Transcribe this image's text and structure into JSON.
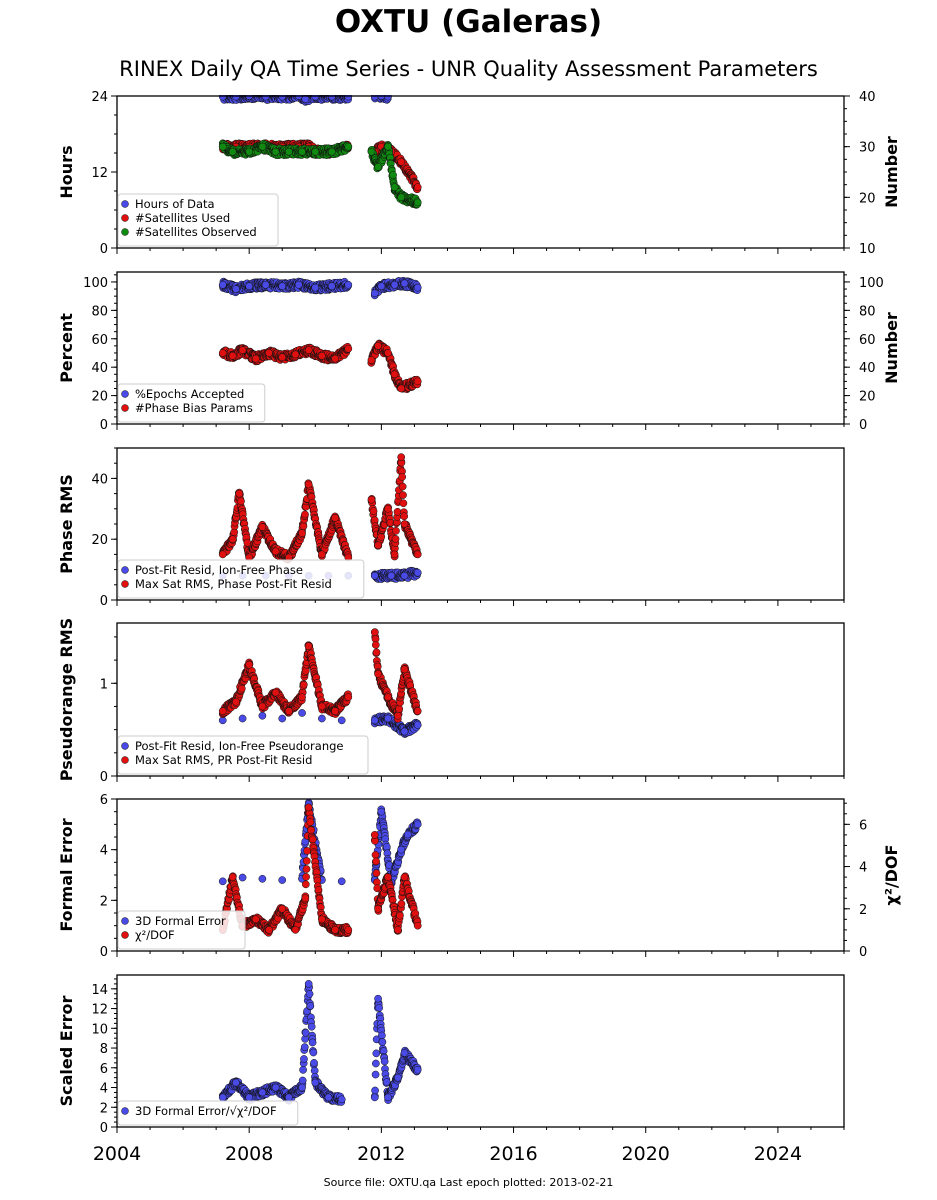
{
  "title": "OXTU (Galeras)",
  "subtitle": "RINEX Daily QA Time Series - UNR Quality Assessment Parameters",
  "footer": "Source file: OXTU.qa Last epoch plotted: 2013-02-21",
  "colors": {
    "blue": "#4a4ae6",
    "red": "#e01010",
    "green": "#108a10"
  },
  "chart_data": [
    {
      "type": "scatter",
      "xlim": [
        2004.0,
        2026.0
      ],
      "x_ticks": [
        "2004",
        "2008",
        "2012",
        "2016",
        "2020",
        "2024"
      ],
      "left_axis": {
        "label": "Hours",
        "ylim": [
          0,
          24
        ],
        "ticks": [
          "0",
          "12",
          "24"
        ]
      },
      "right_axis": {
        "label": "Number",
        "ylim": [
          10,
          40
        ],
        "ticks": [
          "10",
          "20",
          "30",
          "40"
        ]
      },
      "series": [
        {
          "name": "Hours of Data",
          "color": "blue",
          "axis": "left",
          "x": [
            2007.2,
            2007.6,
            2008.0,
            2008.5,
            2009.0,
            2009.5,
            2009.7,
            2010.0,
            2010.5,
            2011.0,
            2011.8,
            2012.0,
            2012.2
          ],
          "y": [
            23.9,
            23.9,
            24.0,
            23.9,
            23.9,
            24.0,
            23.5,
            23.9,
            23.9,
            23.9,
            23.9,
            24.0,
            23.9
          ]
        },
        {
          "name": "#Satellites Used",
          "color": "red",
          "axis": "right",
          "x": [
            2007.2,
            2007.6,
            2008.0,
            2008.5,
            2009.0,
            2009.5,
            2009.8,
            2010.0,
            2010.5,
            2011.0,
            2011.8,
            2012.0,
            2012.3,
            2012.6,
            2013.1
          ],
          "y": [
            30,
            30,
            30,
            30,
            30,
            30,
            30,
            29,
            29,
            30,
            29,
            30,
            29,
            27,
            22
          ]
        },
        {
          "name": "#Satellites Observed",
          "color": "green",
          "axis": "right",
          "x": [
            2007.2,
            2007.5,
            2008.0,
            2008.4,
            2008.8,
            2009.2,
            2009.6,
            2010.0,
            2010.5,
            2011.0,
            2011.7,
            2011.9,
            2012.2,
            2012.4,
            2012.6,
            2013.1
          ],
          "y": [
            30,
            29,
            29,
            30,
            29,
            29,
            29,
            29,
            29,
            30,
            29,
            26,
            30,
            22,
            20,
            19
          ]
        }
      ]
    },
    {
      "type": "scatter",
      "xlim": [
        2004.0,
        2026.0
      ],
      "left_axis": {
        "label": "Percent",
        "ylim": [
          0,
          107
        ],
        "ticks": [
          "0",
          "20",
          "40",
          "60",
          "80",
          "100"
        ]
      },
      "right_axis": {
        "label": "Number",
        "ylim": [
          0,
          107
        ],
        "ticks": [
          "0",
          "20",
          "40",
          "60",
          "80",
          "100"
        ]
      },
      "series": [
        {
          "name": "%Epochs Accepted",
          "color": "blue",
          "axis": "left",
          "x": [
            2007.2,
            2007.6,
            2008.0,
            2008.5,
            2009.0,
            2009.5,
            2010.0,
            2010.5,
            2011.0,
            2011.8,
            2012.0,
            2012.4,
            2012.7,
            2013.1
          ],
          "y": [
            98,
            95,
            97,
            98,
            97,
            98,
            96,
            97,
            98,
            92,
            97,
            98,
            99,
            96
          ]
        },
        {
          "name": "#Phase Bias Params",
          "color": "red",
          "axis": "right",
          "x": [
            2007.2,
            2007.5,
            2007.8,
            2008.2,
            2008.6,
            2009.0,
            2009.4,
            2009.8,
            2010.2,
            2010.6,
            2011.0,
            2011.7,
            2011.9,
            2012.2,
            2012.4,
            2012.6,
            2013.1
          ],
          "y": [
            50,
            48,
            52,
            46,
            50,
            47,
            49,
            52,
            48,
            46,
            53,
            45,
            55,
            50,
            35,
            25,
            30
          ]
        }
      ]
    },
    {
      "type": "scatter",
      "xlim": [
        2004.0,
        2026.0
      ],
      "left_axis": {
        "label": "Phase RMS",
        "ylim": [
          0,
          50
        ],
        "ticks": [
          "0",
          "20",
          "40"
        ]
      },
      "series": [
        {
          "name": "Post-Fit Resid, Ion-Free Phase",
          "color": "blue",
          "axis": "left",
          "x": [
            2007.2,
            2007.8,
            2008.5,
            2009.2,
            2009.8,
            2010.4,
            2011.0,
            2011.8,
            2012.3,
            2012.7,
            2013.1
          ],
          "y": [
            8,
            8,
            8,
            8,
            8,
            8,
            8,
            8,
            8,
            8,
            9
          ]
        },
        {
          "name": "Max Sat RMS, Phase Post-Fit Resid",
          "color": "red",
          "axis": "left",
          "x": [
            2007.2,
            2007.5,
            2007.7,
            2008.0,
            2008.4,
            2008.8,
            2009.2,
            2009.6,
            2009.8,
            2010.2,
            2010.6,
            2011.0,
            2011.7,
            2011.9,
            2012.2,
            2012.4,
            2012.6,
            2012.7,
            2013.1
          ],
          "y": [
            15,
            20,
            35,
            14,
            24,
            16,
            14,
            22,
            38,
            15,
            27,
            14,
            33,
            18,
            30,
            15,
            47,
            25,
            15
          ]
        }
      ]
    },
    {
      "type": "scatter",
      "xlim": [
        2004.0,
        2026.0
      ],
      "left_axis": {
        "label": "Pseudorange RMS",
        "ylim": [
          0,
          1.65
        ],
        "ticks": [
          "0",
          "1"
        ]
      },
      "series": [
        {
          "name": "Post-Fit Resid, Ion-Free Pseudorange",
          "color": "blue",
          "axis": "left",
          "x": [
            2007.2,
            2007.8,
            2008.4,
            2009.0,
            2009.6,
            2010.2,
            2010.8,
            2011.8,
            2012.2,
            2012.7,
            2013.1
          ],
          "y": [
            0.6,
            0.62,
            0.65,
            0.62,
            0.68,
            0.62,
            0.6,
            0.6,
            0.62,
            0.48,
            0.55
          ]
        },
        {
          "name": "Max Sat RMS, PR Post-Fit Resid",
          "color": "red",
          "axis": "left",
          "x": [
            2007.2,
            2007.6,
            2008.0,
            2008.4,
            2008.8,
            2009.2,
            2009.6,
            2009.8,
            2010.2,
            2010.6,
            2011.0,
            2011.8,
            2011.9,
            2012.2,
            2012.5,
            2012.7,
            2013.1
          ],
          "y": [
            0.7,
            0.8,
            1.2,
            0.75,
            0.9,
            0.7,
            0.85,
            1.4,
            0.75,
            0.7,
            0.85,
            1.55,
            1.1,
            0.85,
            0.65,
            1.15,
            0.7
          ]
        }
      ]
    },
    {
      "type": "scatter",
      "xlim": [
        2004.0,
        2026.0
      ],
      "left_axis": {
        "label": "Formal Error",
        "ylim": [
          0,
          6
        ],
        "ticks": [
          "0",
          "2",
          "4",
          "6"
        ]
      },
      "right_axis": {
        "label": "χ²/DOF",
        "ylim": [
          0,
          7.2
        ],
        "ticks": [
          "0",
          "2",
          "4",
          "6"
        ]
      },
      "series": [
        {
          "name": "3D Formal Error",
          "color": "blue",
          "axis": "left",
          "x": [
            2007.2,
            2007.8,
            2008.4,
            2009.0,
            2009.6,
            2009.8,
            2010.2,
            2010.8,
            2011.8,
            2012.0,
            2012.3,
            2012.6,
            2012.8,
            2013.1
          ],
          "y": [
            2.75,
            2.9,
            2.85,
            2.8,
            2.85,
            5.8,
            2.8,
            2.75,
            2.8,
            5.5,
            2.7,
            4.0,
            4.6,
            5.0
          ]
        },
        {
          "name": "χ²/DOF",
          "color": "red",
          "axis": "right",
          "x": [
            2007.2,
            2007.5,
            2007.8,
            2008.2,
            2008.6,
            2009.0,
            2009.4,
            2009.7,
            2009.8,
            2010.2,
            2010.6,
            2011.0,
            2011.8,
            2011.9,
            2012.2,
            2012.5,
            2012.7,
            2013.1
          ],
          "y": [
            1.0,
            3.5,
            1.2,
            1.5,
            1.0,
            2.0,
            1.0,
            2.5,
            6.8,
            1.5,
            1.0,
            1.0,
            5.5,
            2.0,
            3.5,
            1.0,
            3.5,
            1.2
          ]
        }
      ]
    },
    {
      "type": "scatter",
      "xlim": [
        2004.0,
        2026.0
      ],
      "left_axis": {
        "label": "Scaled Error",
        "ylim": [
          0,
          15.4
        ],
        "ticks": [
          "0",
          "2",
          "4",
          "6",
          "8",
          "10",
          "12",
          "14"
        ]
      },
      "series": [
        {
          "name": "3D Formal Error/√χ²/DOF",
          "color": "blue",
          "axis": "left",
          "x": [
            2007.2,
            2007.6,
            2008.0,
            2008.4,
            2008.8,
            2009.2,
            2009.6,
            2009.8,
            2010.0,
            2010.4,
            2010.8,
            2011.8,
            2011.9,
            2012.2,
            2012.5,
            2012.7,
            2013.1
          ],
          "y": [
            3.0,
            4.5,
            3.0,
            3.5,
            4.0,
            3.0,
            4.0,
            14.5,
            4.5,
            3.0,
            2.8,
            3.0,
            13.0,
            3.0,
            5.0,
            7.5,
            5.8
          ]
        }
      ]
    }
  ]
}
